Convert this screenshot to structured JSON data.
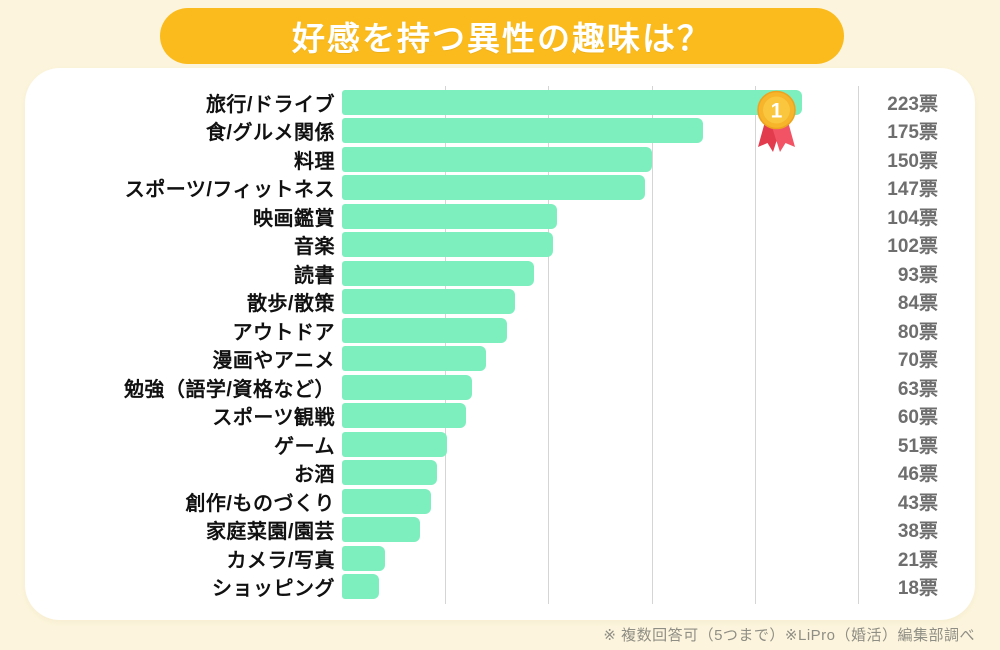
{
  "title": "好感を持つ異性の趣味は？",
  "footer_note": "※ 複数回答可（5つまで）※LiPro（婚活）編集部調べ",
  "medal": {
    "rank": "1",
    "icon": "first-place-medal-icon"
  },
  "colors": {
    "page_background": "#FCF4DC",
    "panel_background": "#FFFFFF",
    "banner": "#FBBB1D",
    "bar": "#7DEEBE",
    "gridline": "#D5D5D5",
    "category_text": "#111111",
    "vote_text": "#6E6E6E",
    "footer_text": "#8F8E85",
    "medal_gold": "#F6B52B",
    "medal_ribbon_red": "#E23B4E"
  },
  "chart_data": {
    "type": "bar",
    "orientation": "horizontal",
    "title": "好感を持つ異性の趣味は？",
    "xlabel": "",
    "ylabel": "",
    "xlim": [
      0,
      250
    ],
    "gridlines": [
      50,
      100,
      150,
      200,
      250
    ],
    "grid": true,
    "legend": false,
    "value_label_suffix": "票",
    "categories": [
      "旅行/ドライブ",
      "食/グルメ関係",
      "料理",
      "スポーツ/フィットネス",
      "映画鑑賞",
      "音楽",
      "読書",
      "散歩/散策",
      "アウトドア",
      "漫画やアニメ",
      "勉強（語学/資格など）",
      "スポーツ観戦",
      "ゲーム",
      "お酒",
      "創作/ものづくり",
      "家庭菜園/園芸",
      "カメラ/写真",
      "ショッピング"
    ],
    "values": [
      223,
      175,
      150,
      147,
      104,
      102,
      93,
      84,
      80,
      70,
      63,
      60,
      51,
      46,
      43,
      38,
      21,
      18
    ]
  }
}
